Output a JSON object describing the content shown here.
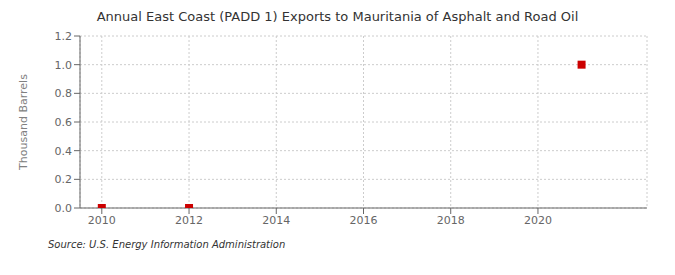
{
  "chart_data": {
    "type": "scatter",
    "title": "Annual East Coast (PADD 1) Exports to Mauritania of Asphalt and Road Oil",
    "ylabel": "Thousand Barrels",
    "annotation": "Source: U.S. Energy Information Administration",
    "x": [
      2010,
      2012,
      2021
    ],
    "values": [
      0.0,
      0.0,
      1.0
    ],
    "color": "#cc0000",
    "marker": "square",
    "xlim": [
      2009.5,
      2022.5
    ],
    "xticks": [
      2010,
      2012,
      2014,
      2016,
      2018,
      2020
    ],
    "ylim": [
      0.0,
      1.2
    ],
    "yticks": [
      {
        "value": 0,
        "label": "0.0"
      },
      0.2,
      0.4,
      0.6,
      0.8,
      {
        "value": 1,
        "label": "1.0"
      },
      1.2
    ],
    "grid": true
  }
}
